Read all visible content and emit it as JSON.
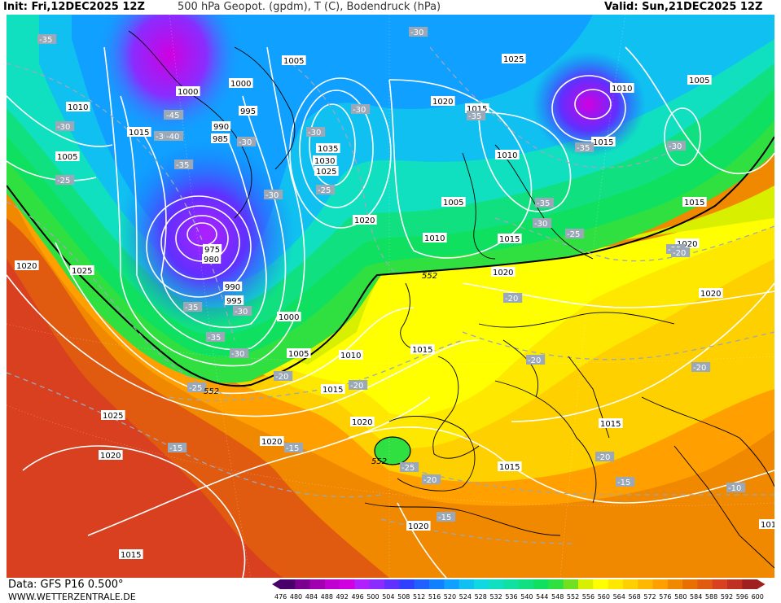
{
  "header": {
    "init": "Init: Fri,12DEC2025 12Z",
    "title": "500 hPa Geopot. (gpdm), T (C), Bodendruck (hPa)",
    "valid": "Valid: Sun,21DEC2025 12Z"
  },
  "footer": {
    "source": "Data: GFS P16 0.500°",
    "site": "WWW.WETTERZENTRALE.DE"
  },
  "legend": {
    "values": [
      "476",
      "480",
      "484",
      "488",
      "492",
      "496",
      "500",
      "504",
      "508",
      "512",
      "516",
      "520",
      "524",
      "528",
      "532",
      "536",
      "540",
      "544",
      "548",
      "552",
      "556",
      "560",
      "564",
      "568",
      "572",
      "576",
      "580",
      "584",
      "588",
      "592",
      "596",
      "600"
    ],
    "colors": [
      "#4a006a",
      "#7a0090",
      "#a000b0",
      "#c000d0",
      "#d000e0",
      "#b020ff",
      "#8a2cff",
      "#6030ff",
      "#3040ff",
      "#2060ff",
      "#1080ff",
      "#10a0ff",
      "#10c0f0",
      "#10d8e0",
      "#10e0c0",
      "#10e0a0",
      "#10e080",
      "#10e060",
      "#30e040",
      "#70e020",
      "#d8f000",
      "#ffff00",
      "#ffe800",
      "#ffd000",
      "#ffb800",
      "#ffa000",
      "#f08800",
      "#e87000",
      "#e05a10",
      "#d84020",
      "#c03020",
      "#a02020"
    ]
  },
  "pressure_labels": [
    {
      "t": "1005"
    },
    {
      "t": "1000"
    },
    {
      "t": "1000"
    },
    {
      "t": "995"
    },
    {
      "t": "990"
    },
    {
      "t": "985"
    },
    {
      "t": "1010"
    },
    {
      "t": "1015"
    },
    {
      "t": "1005"
    },
    {
      "t": "1035"
    },
    {
      "t": "1030"
    },
    {
      "t": "1025"
    },
    {
      "t": "1020"
    },
    {
      "t": "1020"
    },
    {
      "t": "1015"
    },
    {
      "t": "1010"
    },
    {
      "t": "1025"
    },
    {
      "t": "1010"
    },
    {
      "t": "1015"
    },
    {
      "t": "1005"
    },
    {
      "t": "1005"
    },
    {
      "t": "1010"
    },
    {
      "t": "1015"
    },
    {
      "t": "1015"
    },
    {
      "t": "1020"
    },
    {
      "t": "975"
    },
    {
      "t": "980"
    },
    {
      "t": "990"
    },
    {
      "t": "995"
    },
    {
      "t": "1000"
    },
    {
      "t": "1025"
    },
    {
      "t": "1020"
    },
    {
      "t": "1020"
    },
    {
      "t": "1020"
    },
    {
      "t": "1005"
    },
    {
      "t": "1010"
    },
    {
      "t": "1015"
    },
    {
      "t": "1015"
    },
    {
      "t": "1025"
    },
    {
      "t": "1020"
    },
    {
      "t": "1020"
    },
    {
      "t": "1015"
    },
    {
      "t": "1015"
    },
    {
      "t": "1020"
    },
    {
      "t": "1020"
    },
    {
      "t": "101"
    },
    {
      "t": "1015"
    }
  ],
  "temperature_labels": [
    {
      "t": "-35"
    },
    {
      "t": "-30"
    },
    {
      "t": "-35"
    },
    {
      "t": "-30"
    },
    {
      "t": "-30"
    },
    {
      "t": "-25"
    },
    {
      "t": "-45"
    },
    {
      "t": "-40"
    },
    {
      "t": "-35"
    },
    {
      "t": "-30"
    },
    {
      "t": "-30"
    },
    {
      "t": "-30"
    },
    {
      "t": "-25"
    },
    {
      "t": "-30"
    },
    {
      "t": "-35"
    },
    {
      "t": "-35"
    },
    {
      "t": "-30"
    },
    {
      "t": "-35"
    },
    {
      "t": "-30"
    },
    {
      "t": "-25"
    },
    {
      "t": "-25"
    },
    {
      "t": "-20"
    },
    {
      "t": "-20"
    },
    {
      "t": "-20"
    },
    {
      "t": "-35"
    },
    {
      "t": "-30"
    },
    {
      "t": "-35"
    },
    {
      "t": "-30"
    },
    {
      "t": "-25"
    },
    {
      "t": "-20"
    },
    {
      "t": "-20"
    },
    {
      "t": "-15"
    },
    {
      "t": "-15"
    },
    {
      "t": "-25"
    },
    {
      "t": "-20"
    },
    {
      "t": "-15"
    },
    {
      "t": "-20"
    },
    {
      "t": "-15"
    },
    {
      "t": "-10"
    },
    {
      "t": "-20"
    }
  ],
  "geopotential_labels": [
    {
      "t": "552"
    },
    {
      "t": "552"
    },
    {
      "t": "552"
    }
  ]
}
